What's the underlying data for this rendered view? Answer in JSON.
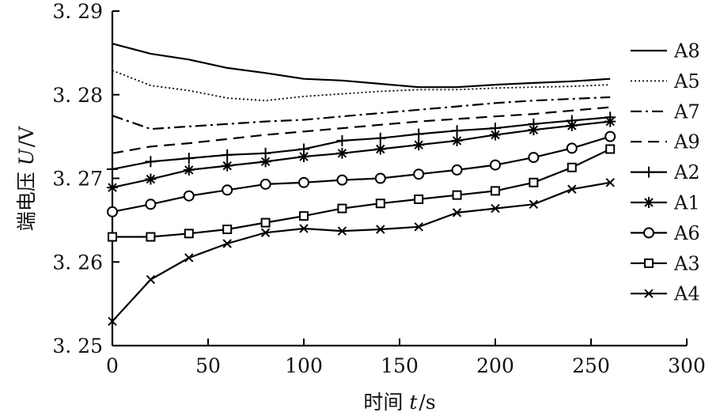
{
  "chart_data": {
    "type": "line",
    "xlabel_prefix": "时间",
    "xlabel_var": "t",
    "xlabel_unit": "/s",
    "ylabel_prefix": "端电压",
    "ylabel_var": "U",
    "ylabel_unit": "/V",
    "xlim": [
      0,
      300
    ],
    "ylim": [
      3.25,
      3.29
    ],
    "x_ticks": [
      0,
      50,
      100,
      150,
      200,
      250,
      300
    ],
    "y_ticks": [
      3.25,
      3.26,
      3.27,
      3.28,
      3.29
    ],
    "x_tick_labels": [
      "0",
      "50",
      "100",
      "150",
      "200",
      "250",
      "300"
    ],
    "y_tick_labels": [
      "3. 25",
      "3. 26",
      "3. 27",
      "3. 28",
      "3. 29"
    ],
    "grid": false,
    "legend_position": "right",
    "series": [
      {
        "name": "A8",
        "style": "solid",
        "marker": "none",
        "x": [
          0,
          20,
          40,
          60,
          80,
          100,
          120,
          140,
          160,
          180,
          200,
          220,
          240,
          260
        ],
        "y": [
          3.2861,
          3.2849,
          3.2842,
          3.2832,
          3.2826,
          3.2819,
          3.2817,
          3.2813,
          3.2809,
          3.2809,
          3.2812,
          3.2814,
          3.2816,
          3.2819
        ]
      },
      {
        "name": "A5",
        "style": "dotted",
        "marker": "none",
        "x": [
          0,
          20,
          40,
          60,
          80,
          100,
          120,
          140,
          160,
          180,
          200,
          220,
          240,
          260
        ],
        "y": [
          3.2829,
          3.2811,
          3.2805,
          3.2796,
          3.2793,
          3.2798,
          3.2801,
          3.2804,
          3.2806,
          3.2806,
          3.2808,
          3.2809,
          3.281,
          3.2812
        ]
      },
      {
        "name": "A7",
        "style": "dashdot",
        "marker": "none",
        "x": [
          0,
          20,
          40,
          60,
          80,
          100,
          120,
          140,
          160,
          180,
          200,
          220,
          240,
          260
        ],
        "y": [
          3.2775,
          3.2759,
          3.2762,
          3.2765,
          3.2768,
          3.277,
          3.2774,
          3.2778,
          3.2782,
          3.2786,
          3.279,
          3.2793,
          3.2795,
          3.2797
        ]
      },
      {
        "name": "A9",
        "style": "dashed",
        "marker": "none",
        "x": [
          0,
          20,
          40,
          60,
          80,
          100,
          120,
          140,
          160,
          180,
          200,
          220,
          240,
          260
        ],
        "y": [
          3.273,
          3.2738,
          3.2742,
          3.2747,
          3.2752,
          3.2756,
          3.276,
          3.2764,
          3.2768,
          3.2771,
          3.2774,
          3.2777,
          3.2781,
          3.2785
        ]
      },
      {
        "name": "A2",
        "style": "solid",
        "marker": "plus",
        "x": [
          0,
          20,
          40,
          60,
          80,
          100,
          120,
          140,
          160,
          180,
          200,
          220,
          240,
          260
        ],
        "y": [
          3.2711,
          3.272,
          3.2724,
          3.2728,
          3.273,
          3.2735,
          3.2745,
          3.2748,
          3.2753,
          3.2757,
          3.276,
          3.2765,
          3.2769,
          3.2773
        ]
      },
      {
        "name": "A1",
        "style": "solid",
        "marker": "star",
        "x": [
          0,
          20,
          40,
          60,
          80,
          100,
          120,
          140,
          160,
          180,
          200,
          220,
          240,
          260
        ],
        "y": [
          3.2689,
          3.2699,
          3.271,
          3.2715,
          3.272,
          3.2726,
          3.273,
          3.2735,
          3.274,
          3.2745,
          3.2752,
          3.2758,
          3.2763,
          3.2768
        ]
      },
      {
        "name": "A6",
        "style": "solid",
        "marker": "circle",
        "x": [
          0,
          20,
          40,
          60,
          80,
          100,
          120,
          140,
          160,
          180,
          200,
          220,
          240,
          260
        ],
        "y": [
          3.266,
          3.2669,
          3.2679,
          3.2686,
          3.2693,
          3.2695,
          3.2698,
          3.27,
          3.2705,
          3.271,
          3.2716,
          3.2725,
          3.2736,
          3.275
        ]
      },
      {
        "name": "A3",
        "style": "solid",
        "marker": "square",
        "x": [
          0,
          20,
          40,
          60,
          80,
          100,
          120,
          140,
          160,
          180,
          200,
          220,
          240,
          260
        ],
        "y": [
          3.263,
          3.263,
          3.2634,
          3.2639,
          3.2647,
          3.2655,
          3.2664,
          3.267,
          3.2675,
          3.268,
          3.2685,
          3.2695,
          3.2713,
          3.2735
        ]
      },
      {
        "name": "A4",
        "style": "solid",
        "marker": "x",
        "x": [
          0,
          20,
          40,
          60,
          80,
          100,
          120,
          140,
          160,
          180,
          200,
          220,
          240,
          260
        ],
        "y": [
          3.2529,
          3.2579,
          3.2605,
          3.2622,
          3.2635,
          3.264,
          3.2637,
          3.2639,
          3.2642,
          3.2659,
          3.2664,
          3.2669,
          3.2687,
          3.2695
        ]
      }
    ]
  }
}
